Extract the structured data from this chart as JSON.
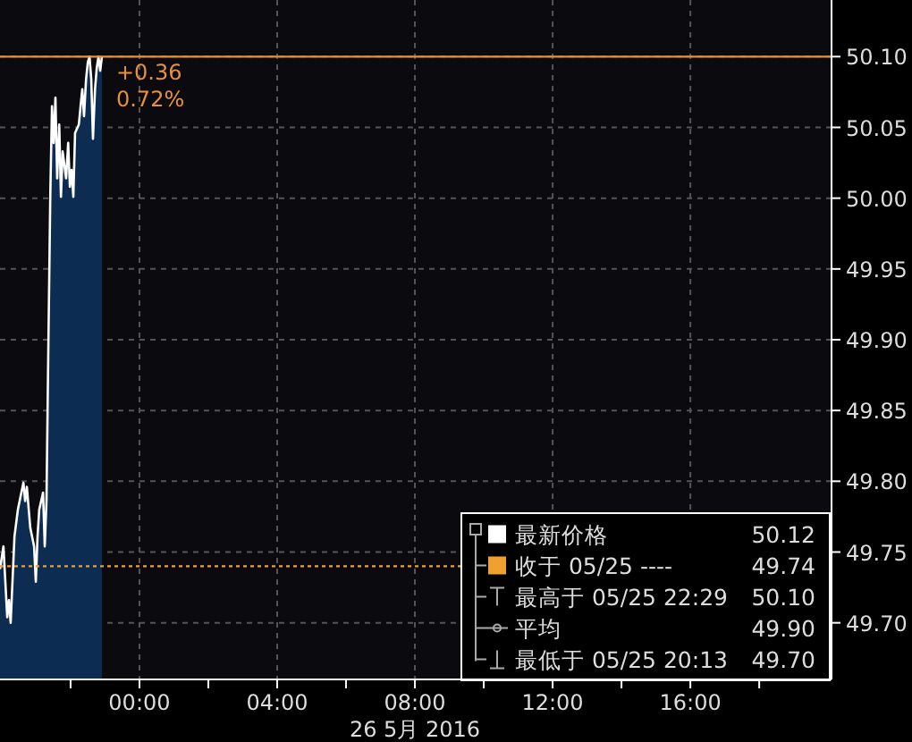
{
  "chart_data": {
    "type": "area",
    "xlabel": "26 5月 2016",
    "x": [
      -4.05,
      -3.95,
      -3.84,
      -3.79,
      -3.74,
      -3.63,
      -3.53,
      -3.43,
      -3.37,
      -3.32,
      -3.27,
      -3.17,
      -3.06,
      -3.01,
      -2.96,
      -2.91,
      -2.8,
      -2.75,
      -2.7,
      -2.65,
      -2.59,
      -2.54,
      -2.49,
      -2.44,
      -2.39,
      -2.33,
      -2.28,
      -2.23,
      -2.13,
      -2.07,
      -2.02,
      -1.97,
      -1.92,
      -1.87,
      -1.76,
      -1.71,
      -1.66,
      -1.61,
      -1.55,
      -1.5,
      -1.45,
      -1.4,
      -1.35,
      -1.29,
      -1.24,
      -1.19,
      -1.14,
      -1.09
    ],
    "series": [
      {
        "name": "最新价格",
        "color": "#ffffff",
        "values": [
          49.738,
          49.754,
          49.704,
          49.716,
          49.7,
          49.761,
          49.78,
          49.792,
          49.799,
          49.786,
          49.796,
          49.767,
          49.754,
          49.729,
          49.761,
          49.78,
          49.792,
          49.754,
          49.786,
          49.887,
          50.001,
          50.065,
          50.039,
          50.071,
          50.014,
          50.052,
          50.001,
          50.033,
          50.014,
          50.039,
          50.008,
          50.02,
          50.001,
          50.046,
          50.052,
          50.065,
          50.077,
          50.058,
          50.084,
          50.096,
          50.1,
          50.084,
          50.042,
          50.077,
          50.092,
          50.1,
          50.09,
          50.1
        ]
      }
    ],
    "xlim": [
      -4.05,
      20.1
    ],
    "xticks": [
      {
        "value": -2,
        "label": null
      },
      {
        "value": 0,
        "label": "00:00"
      },
      {
        "value": 2,
        "label": null
      },
      {
        "value": 4,
        "label": "04:00"
      },
      {
        "value": 6,
        "label": null
      },
      {
        "value": 8,
        "label": "08:00"
      },
      {
        "value": 10,
        "label": null
      },
      {
        "value": 12,
        "label": "12:00"
      },
      {
        "value": 14,
        "label": null
      },
      {
        "value": 16,
        "label": "16:00"
      },
      {
        "value": 18,
        "label": null
      }
    ],
    "ylim": [
      49.66,
      50.14
    ],
    "yticks": [
      {
        "value": 49.7,
        "label": "49.70"
      },
      {
        "value": 49.75,
        "label": "49.75"
      },
      {
        "value": 49.8,
        "label": "49.80"
      },
      {
        "value": 49.85,
        "label": "49.85"
      },
      {
        "value": 49.9,
        "label": "49.90"
      },
      {
        "value": 49.95,
        "label": "49.95"
      },
      {
        "value": 50,
        "label": "50.00"
      },
      {
        "value": 50.05,
        "label": "50.05"
      },
      {
        "value": 50.1,
        "label": "50.10"
      }
    ],
    "grid": true,
    "legend": "bottom right",
    "ref_lines": [
      {
        "axis": "y",
        "value": 50.1,
        "color": "#e8903a",
        "line_style": "solid"
      },
      {
        "axis": "y",
        "value": 49.74,
        "label": "收于 05/25 ----",
        "color": "#f0a030",
        "line_style": "dotted"
      }
    ],
    "annotations": [
      "+0.36",
      "0.72%",
      "50.12",
      "最高于 05/25 22:29",
      "50.10",
      "平均",
      "49.90",
      "最低于 05/25 20:13",
      "49.70",
      "49.74"
    ]
  }
}
